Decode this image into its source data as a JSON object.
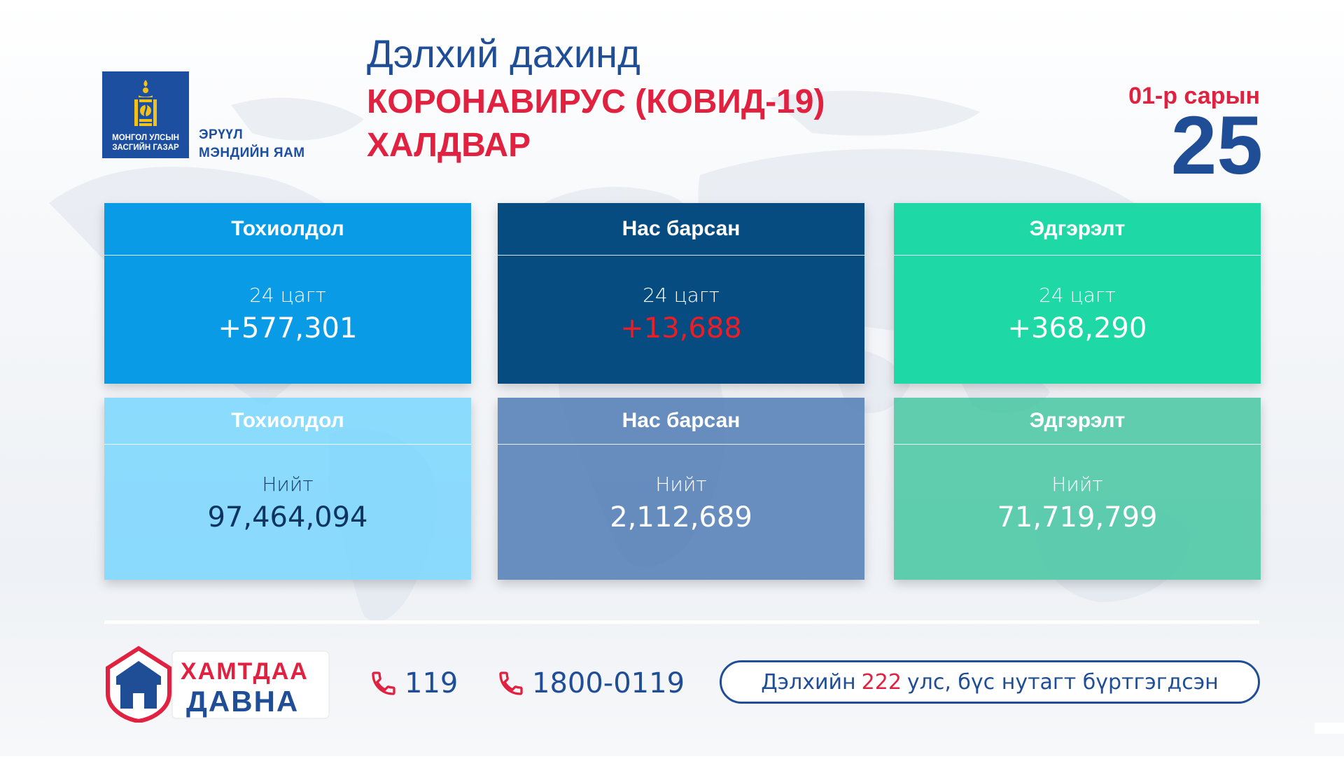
{
  "logo": {
    "gov_text_line1": "МОНГОЛ УЛСЫН",
    "gov_text_line2": "ЗАСГИЙН ГАЗАР"
  },
  "ministry": {
    "line1": "ЭРҮҮЛ",
    "line2": "МЭНДИЙН ЯАМ"
  },
  "title": {
    "line1": "Дэлхий дахинд",
    "line2": "КОРОНАВИРУС (КОВИД-19)",
    "line3": "ХАЛДВАР"
  },
  "date": {
    "label": "01-р сарын",
    "day": "25"
  },
  "cards": {
    "daily_cases": {
      "heading": "Тохиолдол",
      "sub": "24 цагт",
      "value": "+577,301"
    },
    "daily_deaths": {
      "heading": "Нас барсан",
      "sub": "24 цагт",
      "value": "+13,688"
    },
    "daily_recovered": {
      "heading": "Эдгэрэлт",
      "sub": "24 цагт",
      "value": "+368,290"
    },
    "total_cases": {
      "heading": "Тохиолдол",
      "sub": "Нийт",
      "value": "97,464,094"
    },
    "total_deaths": {
      "heading": "Нас барсан",
      "sub": "Нийт",
      "value": "2,112,689"
    },
    "total_recovered": {
      "heading": "Эдгэрэлт",
      "sub": "Нийт",
      "value": "71,719,799"
    }
  },
  "badge": {
    "line1": "ХАМТДАА",
    "line2": "ДАВНА"
  },
  "phones": [
    "119",
    "1800-0119"
  ],
  "footer": {
    "prefix": "Дэлхийн",
    "count": "222",
    "suffix": "улс, бүс нутагт бүртгэгдсэн"
  },
  "colors": {
    "brand_blue": "#1f4e97",
    "accent_red": "#e0213f",
    "cases": "#0a9be6",
    "deaths": "#064c80",
    "recovered": "#1ed8a5"
  },
  "icons": [
    "soyombo-emblem-icon",
    "phone-icon",
    "ger-shield-icon"
  ]
}
